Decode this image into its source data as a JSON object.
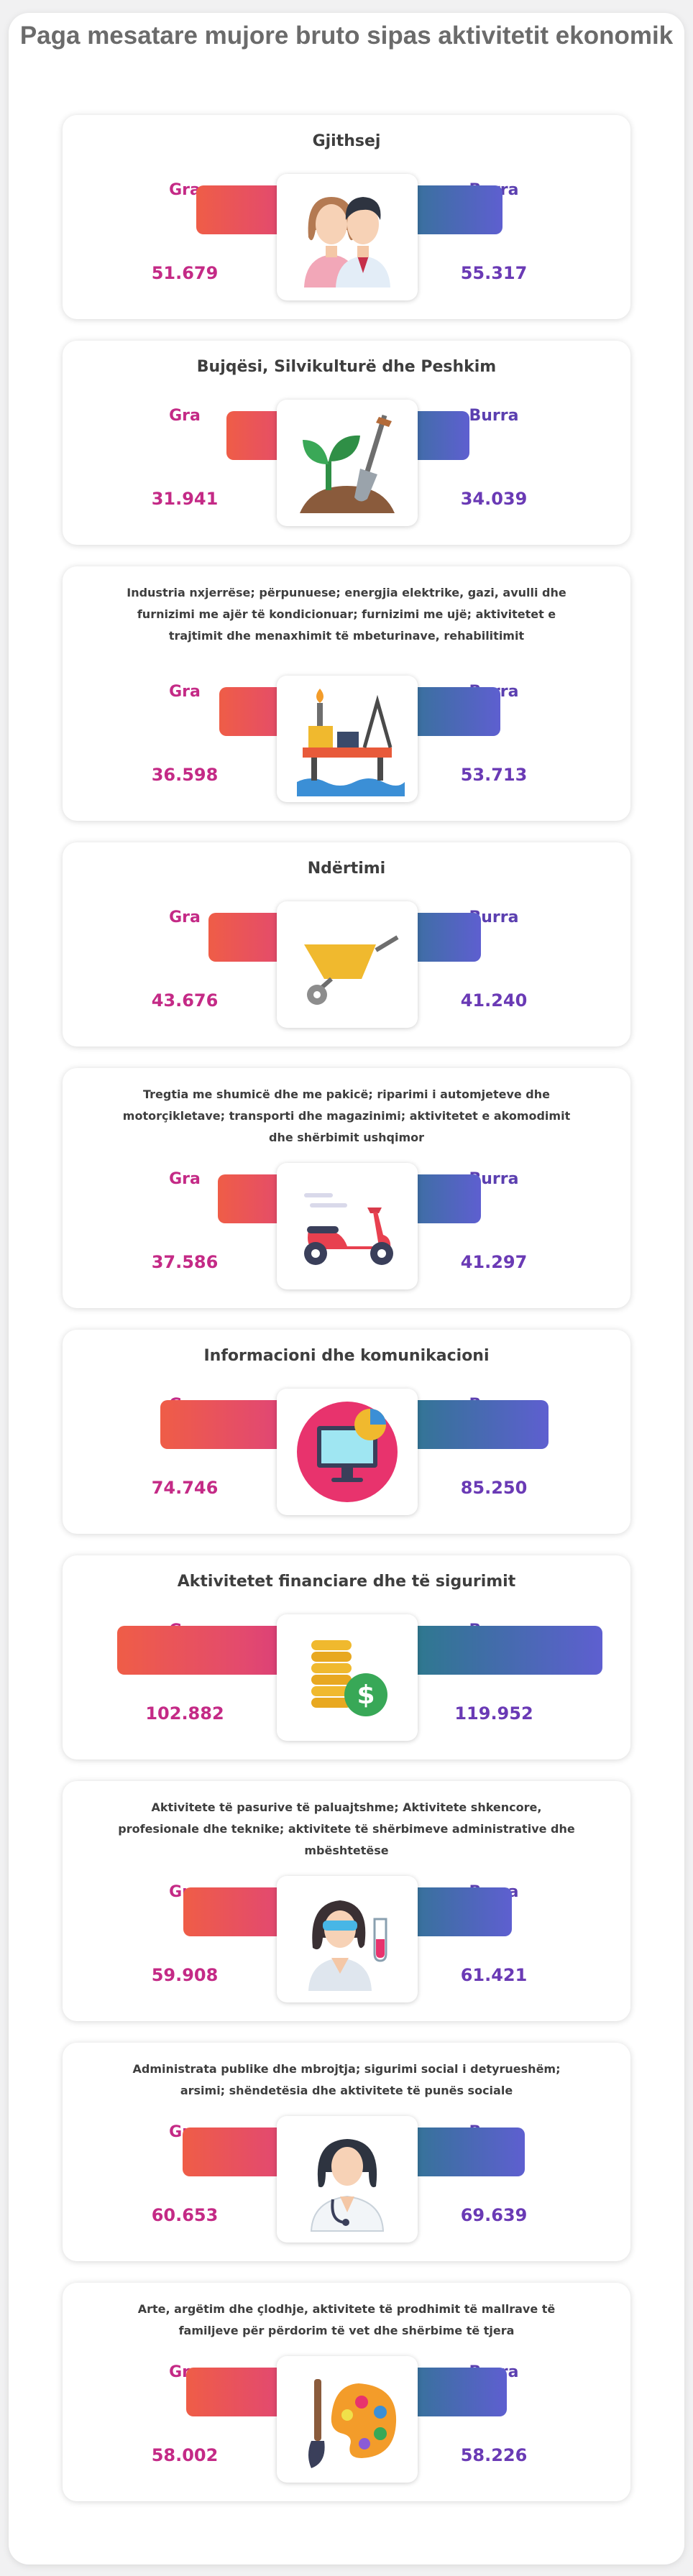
{
  "title": "Paga mesatare mujore bruto sipas aktivitetit ekonomik",
  "colors": {
    "gra_text": "#c42a86",
    "burra_text": "#5b3fb0",
    "gra_gradient": [
      "#ef5d47",
      "#cf2f88"
    ],
    "burra_gradient": [
      "#1d8377",
      "#5e5fd0"
    ]
  },
  "labels": {
    "women": "Gra",
    "men": "Burra"
  },
  "chart_data": {
    "type": "bar",
    "title": "Paga mesatare mujore bruto sipas aktivitetit ekonomik",
    "series": [
      {
        "name": "Gra",
        "values": [
          51679,
          31941,
          36598,
          43676,
          37586,
          74746,
          102882,
          59908,
          60653,
          58002
        ]
      },
      {
        "name": "Burra",
        "values": [
          55317,
          34039,
          53713,
          41240,
          41297,
          85250,
          119952,
          61421,
          69639,
          58226
        ]
      }
    ],
    "categories": [
      "Gjithsej",
      "Bujqësi, Silvikulturë dhe Peshkim",
      "Industria nxjerrëse; përpunuese; energjia elektrike, gazi, avulli dhe furnizimi me ajër të kondicionuar; furnizimi me ujë; aktivitetet e trajtimit dhe menaxhimit të mbeturinave, rehabilitimit",
      "Ndërtimi",
      "Tregtia me shumicë dhe me pakicë; riparimi i automjeteve dhe motorçikletave; transporti dhe magazinimi; aktivitetet e akomodimit dhe shërbimit ushqimor",
      "Informacioni dhe komunikacioni",
      "Aktivitetet financiare dhe të sigurimit",
      "Aktivitete të pasurive të paluajtshme; Aktivitete shkencore, profesionale dhe teknike; aktivitete të shërbimeve administrative dhe mbështetëse",
      "Administrata publike dhe mbrojtja; sigurimi social i detyrueshëm; arsimi; shëndetësia dhe aktivitete të punës sociale",
      "Arte, argëtim dhe çlodhje, aktivitete të prodhimit të mallrave të familjeve për përdorim të vet dhe shërbime të tjera"
    ]
  },
  "cards": [
    {
      "title": "Gjithsej",
      "gra_value": "51.679",
      "burra_value": "55.317",
      "icon": "couple-icon"
    },
    {
      "title": "Bujqësi, Silvikulturë dhe Peshkim",
      "gra_value": "31.941",
      "burra_value": "34.039",
      "icon": "plant-shovel-icon"
    },
    {
      "title": "Industria nxjerrëse; përpunuese; energjia elektrike, gazi, avulli dhe furnizimi me ajër të kondicionuar; furnizimi me ujë; aktivitetet e trajtimit dhe menaxhimit të mbeturinave, rehabilitimit",
      "gra_value": "36.598",
      "burra_value": "53.713",
      "icon": "oil-platform-icon"
    },
    {
      "title": "Ndërtimi",
      "gra_value": "43.676",
      "burra_value": "41.240",
      "icon": "wheelbarrow-icon"
    },
    {
      "title": "Tregtia me shumicë dhe me pakicë; riparimi i automjeteve dhe motorçikletave; transporti dhe magazinimi; aktivitetet e akomodimit dhe shërbimit ushqimor",
      "gra_value": "37.586",
      "burra_value": "41.297",
      "icon": "scooter-icon"
    },
    {
      "title": "Informacioni dhe komunikacioni",
      "gra_value": "74.746",
      "burra_value": "85.250",
      "icon": "monitor-chart-icon"
    },
    {
      "title": "Aktivitetet financiare dhe të sigurimit",
      "gra_value": "102.882",
      "burra_value": "119.952",
      "icon": "coins-dollar-icon"
    },
    {
      "title": "Aktivitete të pasurive të paluajtshme; Aktivitete shkencore, profesionale dhe teknike; aktivitete të shërbimeve administrative dhe mbështetëse",
      "gra_value": "59.908",
      "burra_value": "61.421",
      "icon": "scientist-icon"
    },
    {
      "title": "Administrata publike dhe mbrojtja; sigurimi social i detyrueshëm; arsimi; shëndetësia dhe aktivitete të punës sociale",
      "gra_value": "60.653",
      "burra_value": "69.639",
      "icon": "doctor-icon"
    },
    {
      "title": "Arte, argëtim dhe çlodhje, aktivitete të prodhimit të mallrave të familjeve për përdorim të vet dhe shërbime të tjera",
      "gra_value": "58.002",
      "burra_value": "58.226",
      "icon": "palette-icon"
    }
  ]
}
